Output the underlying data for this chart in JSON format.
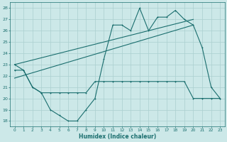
{
  "xlabel": "Humidex (Indice chaleur)",
  "background_color": "#cce8e8",
  "grid_color": "#aacfcf",
  "line_color": "#1a6e6e",
  "xlim": [
    -0.5,
    23.5
  ],
  "ylim": [
    17.5,
    28.5
  ],
  "yticks": [
    18,
    19,
    20,
    21,
    22,
    23,
    24,
    25,
    26,
    27,
    28
  ],
  "xticks": [
    0,
    1,
    2,
    3,
    4,
    5,
    6,
    7,
    8,
    9,
    10,
    11,
    12,
    13,
    14,
    15,
    16,
    17,
    18,
    19,
    20,
    21,
    22,
    23
  ],
  "series1_x": [
    0,
    1,
    2,
    3,
    4,
    5,
    6,
    7,
    8,
    9,
    10,
    11,
    12,
    13,
    14,
    15,
    16,
    17,
    18,
    19,
    20,
    21,
    22,
    23
  ],
  "series1_y": [
    23.0,
    22.5,
    21.0,
    20.5,
    19.0,
    18.5,
    18.0,
    18.0,
    19.0,
    20.0,
    23.5,
    26.5,
    26.5,
    26.0,
    28.0,
    26.0,
    27.2,
    27.2,
    27.8,
    27.0,
    26.5,
    24.5,
    21.0,
    20.0
  ],
  "series2_x": [
    0,
    1,
    2,
    3,
    4,
    5,
    6,
    7,
    8,
    9,
    10,
    11,
    12,
    13,
    14,
    15,
    16,
    17,
    18,
    19,
    20,
    21,
    22,
    23
  ],
  "series2_y": [
    22.5,
    22.5,
    21.0,
    20.5,
    20.5,
    20.5,
    20.5,
    20.5,
    20.5,
    21.5,
    21.5,
    21.5,
    21.5,
    21.5,
    21.5,
    21.5,
    21.5,
    21.5,
    21.5,
    21.5,
    20.0,
    20.0,
    20.0,
    20.0
  ],
  "trend1_x": [
    0,
    20
  ],
  "trend1_y": [
    21.8,
    26.5
  ],
  "trend2_x": [
    0,
    20
  ],
  "trend2_y": [
    23.0,
    27.0
  ]
}
